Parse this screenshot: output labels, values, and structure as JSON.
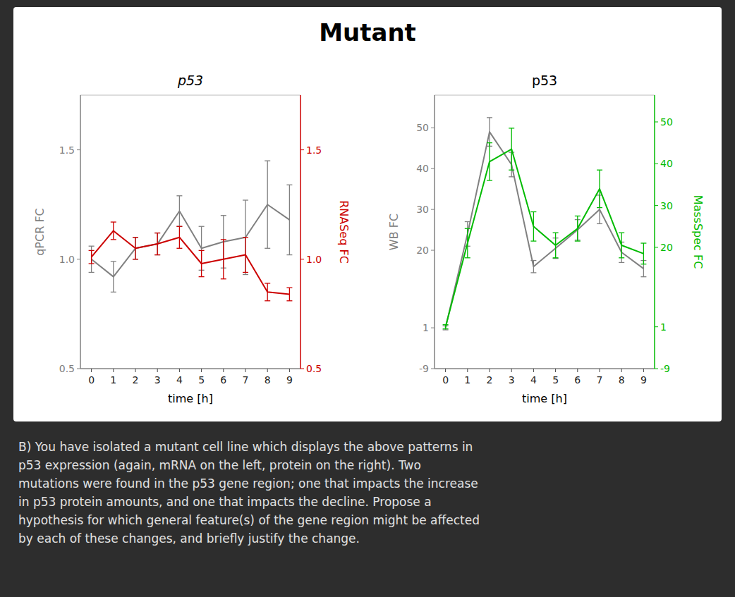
{
  "title": "Mutant",
  "annotations": [
    "B)    You have isolated a mutant cell line which displays the above patterns in\np53 expression (again, mRNA on the left, protein on the right). Two\nmutations were found in the p53 gene region; one that impacts the increase\nin p53 protein amounts, and one that impacts the decline. Propose a\nhypothesis for which general feature(s) of the gene region might be affected\nby each of these changes, and briefly justify the change."
  ],
  "chart_data": [
    {
      "type": "line",
      "title": "p53",
      "xlabel": "time [h]",
      "ylabel": "qPCR FC",
      "y2label": "RNASeq FC",
      "x": [
        0,
        1,
        2,
        3,
        4,
        5,
        6,
        7,
        8,
        9
      ],
      "xlim": [
        -0.5,
        9.5
      ],
      "xticks": [
        0,
        1,
        2,
        3,
        4,
        5,
        6,
        7,
        8,
        9
      ],
      "ylim": [
        0.5,
        1.75
      ],
      "yticks": [
        0.5,
        {
          "value": 1.0,
          "label": "1.0"
        },
        1.5
      ],
      "y2lim": [
        0.5,
        1.75
      ],
      "y2ticks": [
        0.5,
        {
          "value": 1.0,
          "label": "1.0"
        },
        1.5
      ],
      "grid": false,
      "series": [
        {
          "color": "#808080",
          "values": [
            1.0,
            0.92,
            1.05,
            1.07,
            1.22,
            1.05,
            1.08,
            1.1,
            1.25,
            1.18
          ],
          "error": [
            0.06,
            0.07,
            0.05,
            0.05,
            0.07,
            0.1,
            0.12,
            0.17,
            0.2,
            0.16
          ]
        },
        {
          "color": "#cc0000",
          "axis": "y2",
          "values": [
            1.01,
            1.13,
            1.05,
            1.07,
            1.1,
            0.98,
            1.0,
            1.02,
            0.85,
            0.84
          ],
          "error": [
            0.03,
            0.04,
            0.05,
            0.05,
            0.05,
            0.06,
            0.09,
            0.08,
            0.04,
            0.03
          ]
        }
      ]
    },
    {
      "type": "line",
      "title": "p53",
      "xlabel": "time [h]",
      "ylabel": "WB FC",
      "y2label": "MassSpec FC",
      "x": [
        0,
        1,
        2,
        3,
        4,
        5,
        6,
        7,
        8,
        9
      ],
      "xlim": [
        -0.5,
        9.5
      ],
      "xticks": [
        0,
        1,
        2,
        3,
        4,
        5,
        6,
        7,
        8,
        9
      ],
      "ylim": [
        -9,
        58
      ],
      "yticks": [
        -9,
        1,
        20,
        30,
        40,
        50
      ],
      "y2lim": [
        -9,
        56.4
      ],
      "y2ticks": [
        -9,
        1,
        20,
        30,
        40,
        50
      ],
      "grid": false,
      "series": [
        {
          "color": "#808080",
          "values": [
            1.0,
            24.0,
            49.0,
            41.0,
            16.0,
            20.5,
            25.0,
            30.0,
            19.5,
            15.5
          ],
          "error": [
            0.5,
            3.0,
            3.5,
            3.0,
            1.5,
            2.5,
            2.5,
            3.5,
            2.5,
            2.0
          ]
        },
        {
          "color": "#00bb00",
          "axis": "y2",
          "values": [
            1.0,
            21.0,
            40.5,
            43.5,
            25.0,
            20.5,
            24.5,
            34.0,
            20.5,
            18.5
          ],
          "error": [
            0.5,
            3.5,
            4.5,
            5.0,
            3.5,
            3.0,
            3.0,
            4.5,
            3.0,
            2.5
          ]
        }
      ]
    }
  ]
}
